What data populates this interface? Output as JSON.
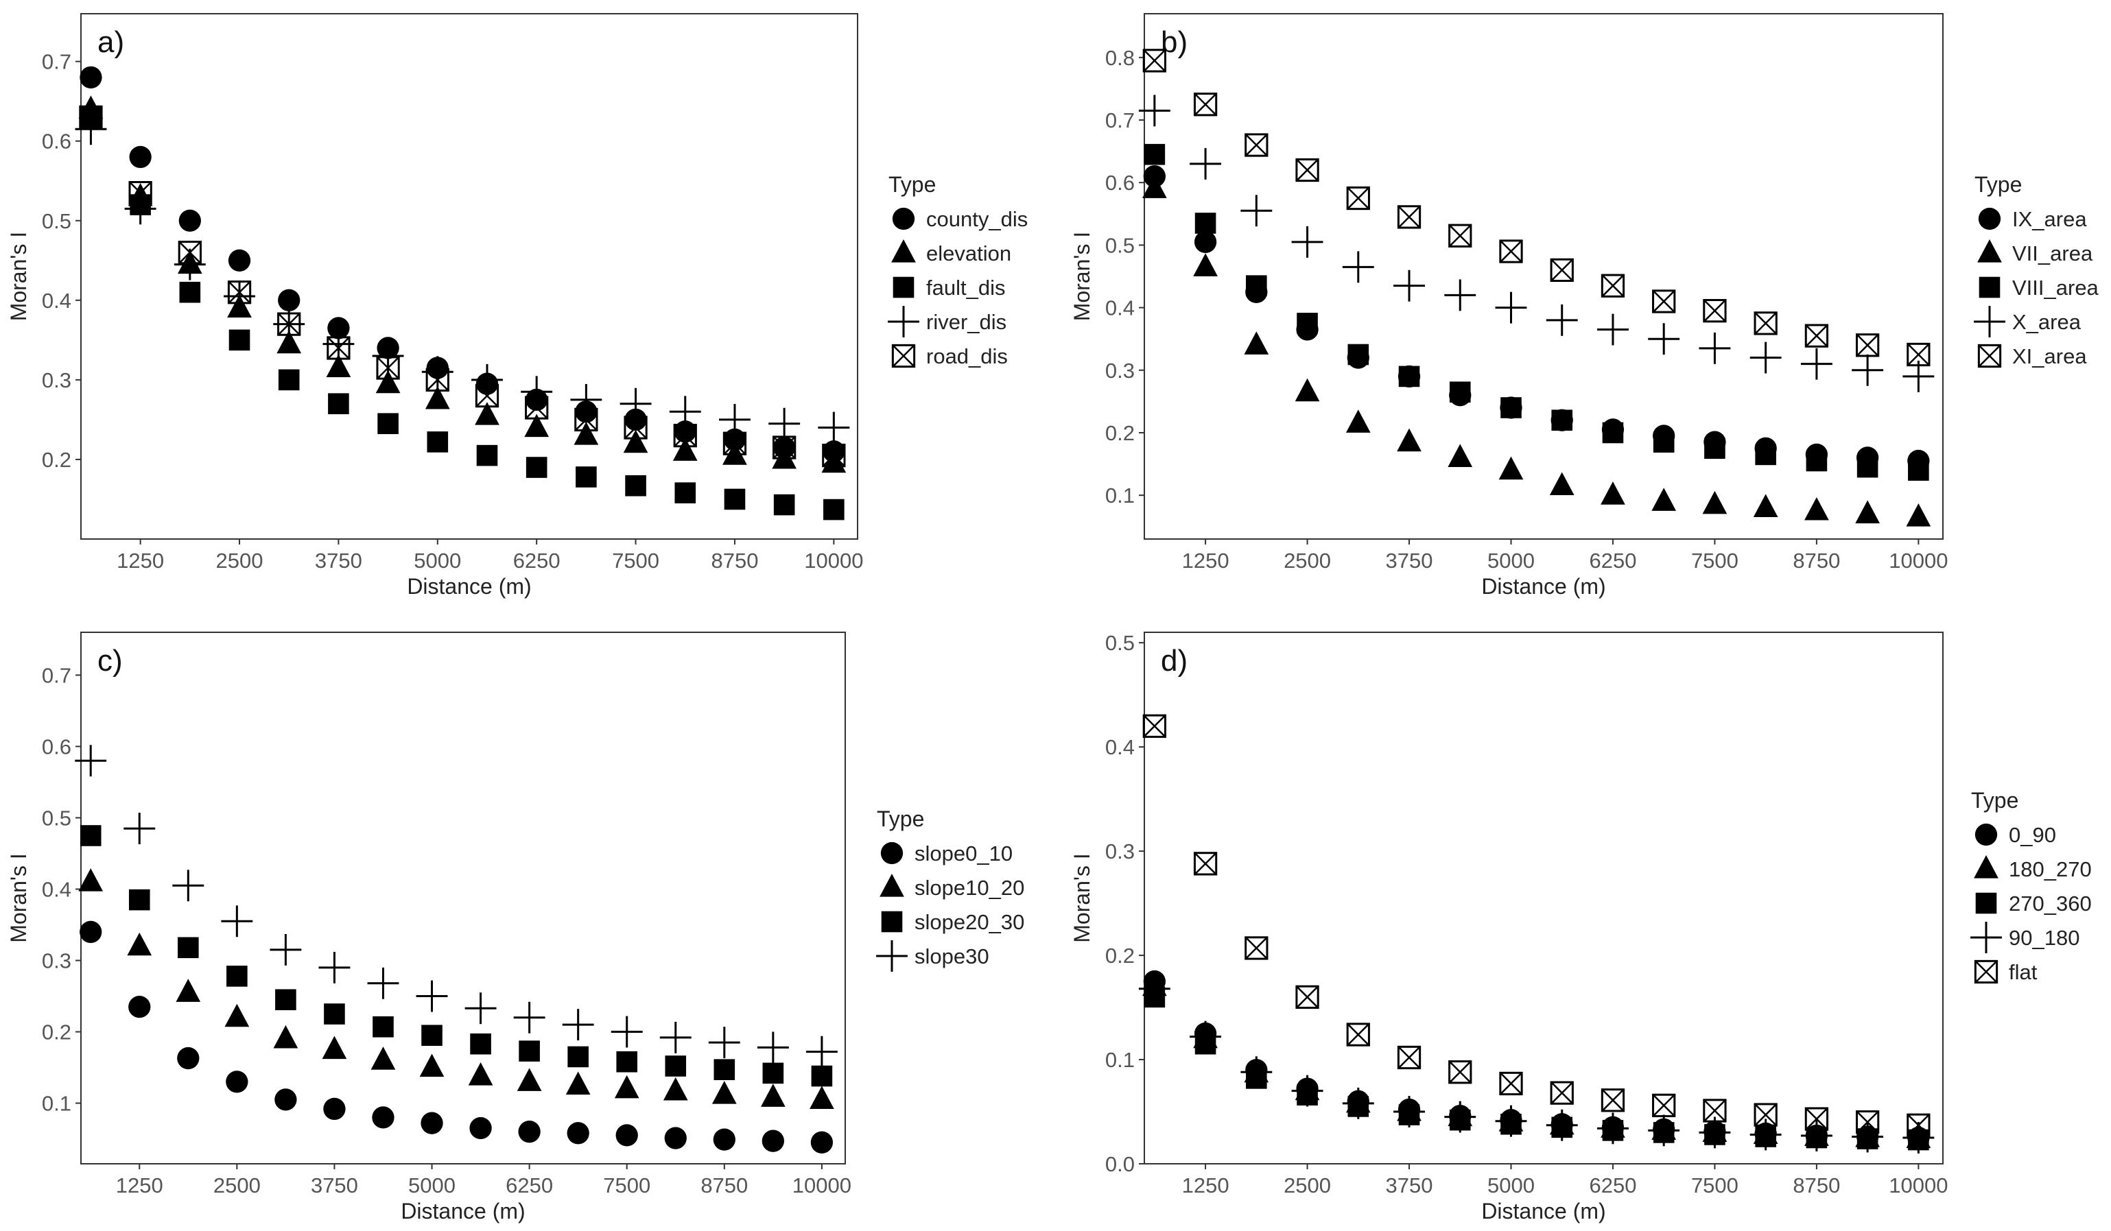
{
  "chart_data": [
    {
      "type": "scatter",
      "panel_label": "a)",
      "xlabel": "Distance (m)",
      "ylabel": "Moran's I",
      "xlim": [
        500,
        10300
      ],
      "ylim": [
        0.1,
        0.76
      ],
      "xticks": [
        1250,
        2500,
        3750,
        5000,
        6250,
        7500,
        8750,
        10000
      ],
      "yticks": [
        0.2,
        0.3,
        0.4,
        0.5,
        0.6,
        0.7
      ],
      "legend_title": "Type",
      "legend_position": "right",
      "x": [
        625,
        1250,
        1875,
        2500,
        3125,
        3750,
        4375,
        5000,
        5625,
        6250,
        6875,
        7500,
        8125,
        8750,
        9375,
        10000
      ],
      "series": [
        {
          "name": "county_dis",
          "shape": "circle",
          "values": [
            0.68,
            0.58,
            0.5,
            0.45,
            0.4,
            0.365,
            0.34,
            0.315,
            0.295,
            0.275,
            0.26,
            0.25,
            0.235,
            0.225,
            0.215,
            0.21
          ]
        },
        {
          "name": "elevation",
          "shape": "triangle",
          "values": [
            0.64,
            0.53,
            0.445,
            0.39,
            0.345,
            0.315,
            0.295,
            0.275,
            0.255,
            0.24,
            0.23,
            0.22,
            0.21,
            0.205,
            0.2,
            0.195
          ]
        },
        {
          "name": "fault_dis",
          "shape": "square",
          "values": [
            0.63,
            0.52,
            0.41,
            0.35,
            0.3,
            0.27,
            0.245,
            0.222,
            0.205,
            0.19,
            0.178,
            0.167,
            0.158,
            0.15,
            0.143,
            0.137
          ]
        },
        {
          "name": "river_dis",
          "shape": "plus",
          "values": [
            0.615,
            0.515,
            0.445,
            0.405,
            0.37,
            0.345,
            0.33,
            0.31,
            0.3,
            0.285,
            0.275,
            0.27,
            0.26,
            0.25,
            0.245,
            0.24
          ]
        },
        {
          "name": "road_dis",
          "shape": "boxx",
          "values": [
            0.63,
            0.535,
            0.46,
            0.41,
            0.37,
            0.34,
            0.315,
            0.3,
            0.28,
            0.265,
            0.25,
            0.24,
            0.23,
            0.22,
            0.215,
            0.205
          ]
        }
      ]
    },
    {
      "type": "scatter",
      "panel_label": "b)",
      "xlabel": "Distance (m)",
      "ylabel": "Moran's I",
      "xlim": [
        500,
        10300
      ],
      "ylim": [
        0.03,
        0.87
      ],
      "xticks": [
        1250,
        2500,
        3750,
        5000,
        6250,
        7500,
        8750,
        10000
      ],
      "yticks": [
        0.1,
        0.2,
        0.3,
        0.4,
        0.5,
        0.6,
        0.7,
        0.8
      ],
      "legend_title": "Type",
      "legend_position": "right",
      "x": [
        625,
        1250,
        1875,
        2500,
        3125,
        3750,
        4375,
        5000,
        5625,
        6250,
        6875,
        7500,
        8125,
        8750,
        9375,
        10000
      ],
      "series": [
        {
          "name": "IX_area",
          "shape": "circle",
          "values": [
            0.61,
            0.505,
            0.425,
            0.365,
            0.32,
            0.29,
            0.26,
            0.24,
            0.22,
            0.205,
            0.195,
            0.185,
            0.175,
            0.165,
            0.16,
            0.155
          ]
        },
        {
          "name": "VII_area",
          "shape": "triangle",
          "values": [
            0.59,
            0.465,
            0.34,
            0.265,
            0.215,
            0.185,
            0.16,
            0.14,
            0.115,
            0.1,
            0.09,
            0.085,
            0.08,
            0.075,
            0.07,
            0.065
          ]
        },
        {
          "name": "VIII_area",
          "shape": "square",
          "values": [
            0.645,
            0.535,
            0.435,
            0.375,
            0.325,
            0.29,
            0.265,
            0.24,
            0.22,
            0.2,
            0.185,
            0.175,
            0.165,
            0.155,
            0.145,
            0.14
          ]
        },
        {
          "name": "X_area",
          "shape": "plus",
          "values": [
            0.715,
            0.63,
            0.555,
            0.505,
            0.465,
            0.435,
            0.42,
            0.4,
            0.38,
            0.365,
            0.35,
            0.335,
            0.32,
            0.31,
            0.3,
            0.29
          ]
        },
        {
          "name": "XI_area",
          "shape": "boxx",
          "values": [
            0.795,
            0.725,
            0.66,
            0.62,
            0.575,
            0.545,
            0.515,
            0.49,
            0.46,
            0.435,
            0.41,
            0.395,
            0.375,
            0.355,
            0.34,
            0.325
          ]
        }
      ]
    },
    {
      "type": "scatter",
      "panel_label": "c)",
      "xlabel": "Distance (m)",
      "ylabel": "Moran's I",
      "xlim": [
        500,
        10300
      ],
      "ylim": [
        0.015,
        0.76
      ],
      "xticks": [
        1250,
        2500,
        3750,
        5000,
        6250,
        7500,
        8750,
        10000
      ],
      "yticks": [
        0.1,
        0.2,
        0.3,
        0.4,
        0.5,
        0.6,
        0.7
      ],
      "legend_title": "Type",
      "legend_position": "right",
      "x": [
        625,
        1250,
        1875,
        2500,
        3125,
        3750,
        4375,
        5000,
        5625,
        6250,
        6875,
        7500,
        8125,
        8750,
        9375,
        10000
      ],
      "series": [
        {
          "name": "slope0_10",
          "shape": "circle",
          "values": [
            0.34,
            0.235,
            0.163,
            0.13,
            0.105,
            0.092,
            0.08,
            0.072,
            0.065,
            0.06,
            0.058,
            0.055,
            0.051,
            0.049,
            0.047,
            0.045
          ]
        },
        {
          "name": "slope10_20",
          "shape": "triangle",
          "values": [
            0.41,
            0.32,
            0.255,
            0.22,
            0.19,
            0.175,
            0.16,
            0.15,
            0.138,
            0.13,
            0.125,
            0.12,
            0.117,
            0.112,
            0.108,
            0.105
          ]
        },
        {
          "name": "slope20_30",
          "shape": "square",
          "values": [
            0.475,
            0.385,
            0.318,
            0.278,
            0.245,
            0.225,
            0.207,
            0.195,
            0.183,
            0.173,
            0.165,
            0.158,
            0.152,
            0.147,
            0.142,
            0.138
          ]
        },
        {
          "name": "slope30",
          "shape": "plus",
          "values": [
            0.58,
            0.485,
            0.405,
            0.355,
            0.315,
            0.29,
            0.268,
            0.25,
            0.233,
            0.22,
            0.21,
            0.2,
            0.192,
            0.185,
            0.178,
            0.172
          ]
        }
      ]
    },
    {
      "type": "scatter",
      "panel_label": "d)",
      "xlabel": "Distance (m)",
      "ylabel": "Moran's I",
      "xlim": [
        500,
        10300
      ],
      "ylim": [
        0.0,
        0.51
      ],
      "xticks": [
        1250,
        2500,
        3750,
        5000,
        6250,
        7500,
        8750,
        10000
      ],
      "yticks": [
        0.0,
        0.1,
        0.2,
        0.3,
        0.4,
        0.5
      ],
      "legend_title": "Type",
      "legend_position": "right",
      "x": [
        625,
        1250,
        1875,
        2500,
        3125,
        3750,
        4375,
        5000,
        5625,
        6250,
        6875,
        7500,
        8125,
        8750,
        9375,
        10000
      ],
      "series": [
        {
          "name": "0_90",
          "shape": "circle",
          "values": [
            0.175,
            0.125,
            0.09,
            0.072,
            0.06,
            0.052,
            0.046,
            0.042,
            0.038,
            0.035,
            0.033,
            0.031,
            0.029,
            0.027,
            0.026,
            0.025
          ]
        },
        {
          "name": "180_270",
          "shape": "triangle",
          "values": [
            0.17,
            0.12,
            0.087,
            0.07,
            0.058,
            0.05,
            0.045,
            0.04,
            0.037,
            0.034,
            0.032,
            0.03,
            0.028,
            0.026,
            0.025,
            0.024
          ]
        },
        {
          "name": "270_360",
          "shape": "square",
          "values": [
            0.16,
            0.115,
            0.082,
            0.066,
            0.055,
            0.047,
            0.042,
            0.038,
            0.035,
            0.032,
            0.03,
            0.028,
            0.026,
            0.025,
            0.024,
            0.023
          ]
        },
        {
          "name": "90_180",
          "shape": "plus",
          "values": [
            0.168,
            0.122,
            0.088,
            0.07,
            0.058,
            0.05,
            0.045,
            0.041,
            0.037,
            0.034,
            0.032,
            0.03,
            0.028,
            0.027,
            0.026,
            0.025
          ]
        },
        {
          "name": "flat",
          "shape": "boxx",
          "values": [
            0.42,
            0.288,
            0.207,
            0.16,
            0.124,
            0.102,
            0.088,
            0.077,
            0.068,
            0.061,
            0.056,
            0.051,
            0.047,
            0.043,
            0.04,
            0.037
          ]
        }
      ]
    }
  ]
}
